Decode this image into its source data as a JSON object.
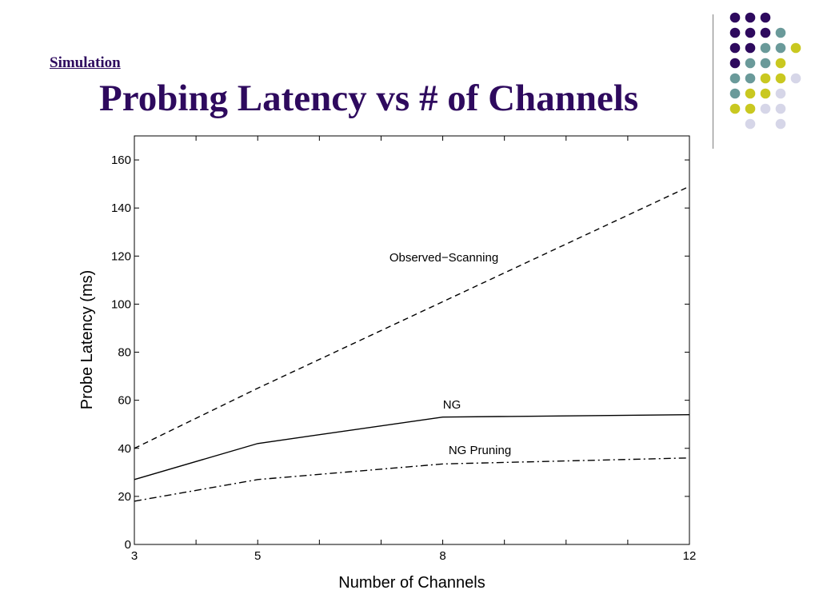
{
  "slide": {
    "section_link": "Simulation",
    "title": "Probing Latency vs # of Channels"
  },
  "colors": {
    "title": "#2e0a5e",
    "dot_purple": "#2e0a5e",
    "dot_teal": "#6a9a9a",
    "dot_yellow": "#c9c820",
    "dot_lavender": "#d6d6e8"
  },
  "decoration": {
    "dot_grid_rows": [
      [
        "purple",
        "purple",
        "purple",
        null,
        null
      ],
      [
        "purple",
        "purple",
        "purple",
        "teal",
        null
      ],
      [
        "purple",
        "purple",
        "teal",
        "teal",
        "yellow"
      ],
      [
        "purple",
        "teal",
        "teal",
        "yellow",
        null
      ],
      [
        "teal",
        "teal",
        "yellow",
        "yellow",
        "lavender"
      ],
      [
        "teal",
        "yellow",
        "yellow",
        "lavender",
        null
      ],
      [
        "yellow",
        "yellow",
        "lavender",
        "lavender",
        null
      ],
      [
        null,
        "lavender",
        null,
        "lavender",
        null
      ]
    ]
  },
  "chart_data": {
    "type": "line",
    "title": "",
    "xlabel": "Number of Channels",
    "ylabel": "Probe Latency (ms)",
    "xlim": [
      3,
      12
    ],
    "ylim": [
      0,
      170
    ],
    "xticks": [
      3,
      5,
      8,
      12
    ],
    "yticks": [
      0,
      20,
      40,
      60,
      80,
      100,
      120,
      140,
      160
    ],
    "grid": false,
    "series": [
      {
        "name": "Observed−Scanning",
        "style": "dashed",
        "x": [
          3,
          5,
          8,
          12
        ],
        "y": [
          40,
          65,
          101,
          149
        ]
      },
      {
        "name": "NG",
        "style": "solid",
        "x": [
          3,
          5,
          8,
          12
        ],
        "y": [
          27,
          42,
          53,
          54
        ]
      },
      {
        "name": "NG Pruning",
        "style": "dashdot",
        "x": [
          3,
          5,
          8,
          12
        ],
        "y": [
          18,
          27,
          33.5,
          36
        ]
      }
    ]
  }
}
